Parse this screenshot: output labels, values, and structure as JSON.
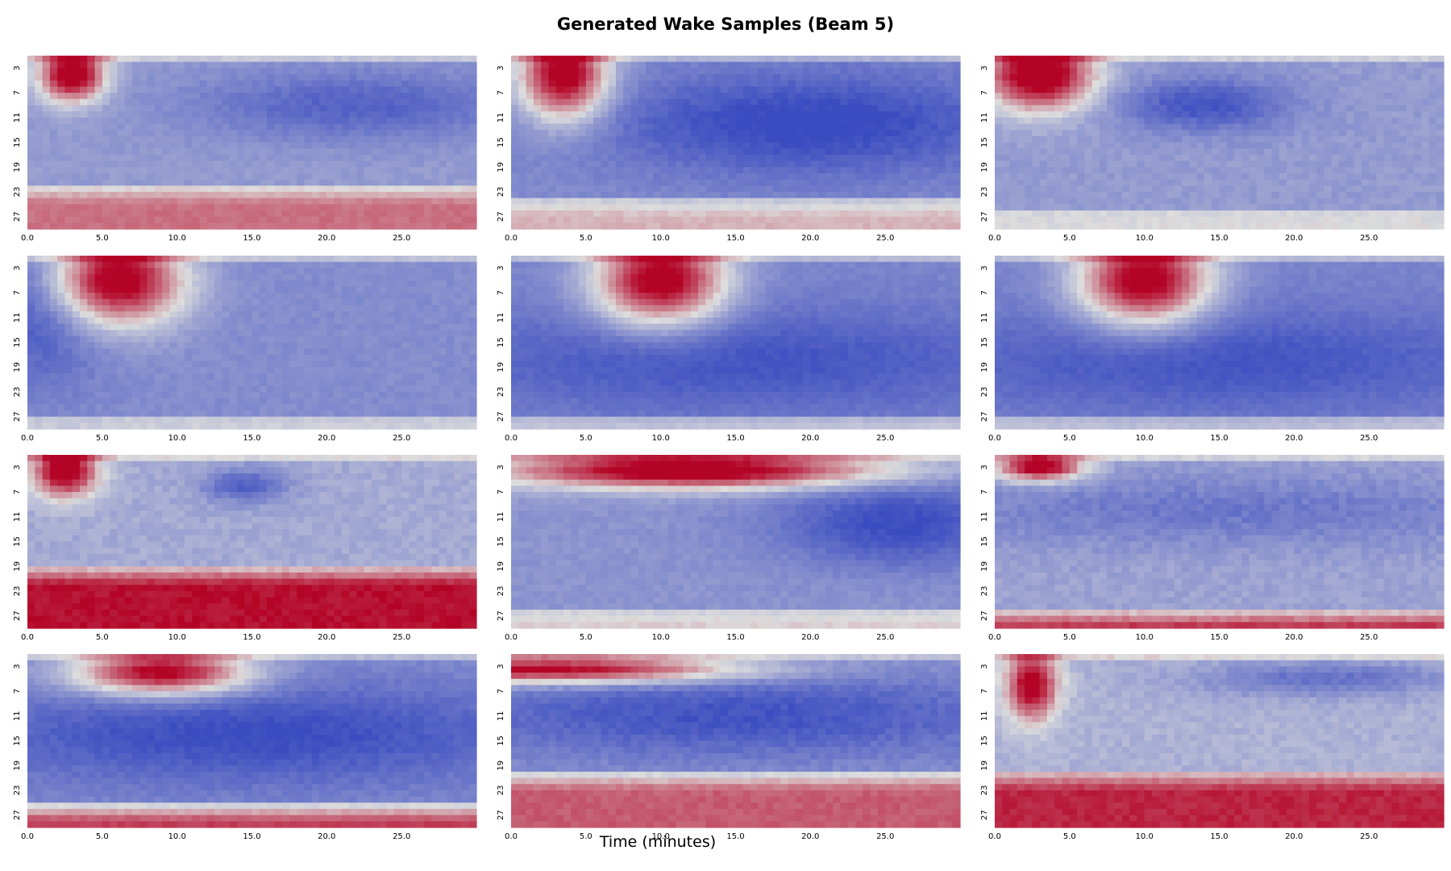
{
  "chart_data": {
    "type": "heatmap",
    "title": "Generated Wake Samples (Beam 5)",
    "xlabel": "Time (minutes)",
    "ylabel": "",
    "colormap": "coolwarm",
    "colors": {
      "low": "#3b4cc0",
      "mid": "#dddddd",
      "high": "#b40426"
    },
    "grid": false,
    "x_tick_labels": [
      "0.0",
      "5.0",
      "10.0",
      "15.0",
      "20.0",
      "25.0"
    ],
    "y_tick_labels": [
      "3",
      "7",
      "11",
      "15",
      "19",
      "23",
      "27"
    ],
    "x_range": [
      0,
      30
    ],
    "depth_range": [
      1,
      29
    ],
    "layout": {
      "rows": 4,
      "cols": 3
    },
    "panels": [
      {
        "hot": {
          "t": 3,
          "d": 4,
          "dt": 1.5,
          "dd": 3,
          "amp": 1.0
        },
        "trough": {
          "t": 22,
          "d": 9,
          "dt": 8,
          "dd": 4,
          "amp": 0.4
        },
        "bottom": {
          "from": 22,
          "amp": 0.55
        },
        "base": -0.45,
        "noise": 0.05
      },
      {
        "hot": {
          "t": 3.5,
          "d": 4,
          "dt": 2,
          "dd": 5,
          "amp": 1.0
        },
        "trough": {
          "t": 20,
          "d": 12,
          "dt": 10,
          "dd": 6,
          "amp": 0.5
        },
        "bottom": {
          "from": 24,
          "amp": 0.35
        },
        "base": -0.55,
        "noise": 0.05
      },
      {
        "hot": {
          "t": 3,
          "d": 4,
          "dt": 2.5,
          "dd": 4,
          "amp": 1.0
        },
        "trough": {
          "t": 14,
          "d": 9,
          "dt": 4,
          "dd": 3,
          "amp": 0.5
        },
        "bottom": {
          "from": 26,
          "amp": 0.05
        },
        "base": -0.45,
        "noise": 0.06
      },
      {
        "hot": {
          "t": 6,
          "d": 5,
          "dt": 3,
          "dd": 5,
          "amp": 1.0
        },
        "trough": {
          "t": 1,
          "d": 10,
          "dt": 3,
          "dd": 8,
          "amp": 0.4
        },
        "bottom": {
          "from": 27,
          "amp": 0.1
        },
        "base": -0.55,
        "noise": 0.05
      },
      {
        "hot": {
          "t": 10,
          "d": 5,
          "dt": 3,
          "dd": 5,
          "amp": 1.0
        },
        "trough": {
          "t": 15,
          "d": 18,
          "dt": 15,
          "dd": 6,
          "amp": 0.35
        },
        "bottom": {
          "from": 27,
          "amp": 0.15
        },
        "base": -0.6,
        "noise": 0.04
      },
      {
        "hot": {
          "t": 10,
          "d": 5,
          "dt": 3,
          "dd": 5,
          "amp": 1.0
        },
        "trough": {
          "t": 15,
          "d": 18,
          "dt": 15,
          "dd": 6,
          "amp": 0.35
        },
        "bottom": {
          "from": 27,
          "amp": 0.1
        },
        "base": -0.6,
        "noise": 0.04
      },
      {
        "hot": {
          "t": 2.5,
          "d": 3.5,
          "dt": 1.5,
          "dd": 3,
          "amp": 0.9
        },
        "trough": {
          "t": 14.5,
          "d": 6,
          "dt": 2,
          "dd": 2,
          "amp": 0.5
        },
        "bottom": {
          "from": 19,
          "amp": 0.9
        },
        "base": -0.35,
        "noise": 0.07
      },
      {
        "hot": {
          "t": 12,
          "d": 3.5,
          "dt": 9,
          "dd": 2,
          "amp": 1.0
        },
        "trough": {
          "t": 26,
          "d": 12,
          "dt": 6,
          "dd": 5,
          "amp": 0.5
        },
        "bottom": {
          "from": 26,
          "amp": 0.2
        },
        "base": -0.5,
        "noise": 0.05
      },
      {
        "hot": {
          "t": 3,
          "d": 3,
          "dt": 2,
          "dd": 1.5,
          "amp": 0.9
        },
        "trough": {
          "t": 15,
          "d": 10,
          "dt": 15,
          "dd": 4,
          "amp": 0.3
        },
        "bottom": {
          "from": 26,
          "amp": 0.9
        },
        "base": -0.4,
        "noise": 0.07
      },
      {
        "hot": {
          "t": 9,
          "d": 4,
          "dt": 4,
          "dd": 2.5,
          "amp": 0.95
        },
        "trough": {
          "t": 15,
          "d": 14,
          "dt": 15,
          "dd": 6,
          "amp": 0.45
        },
        "bottom": {
          "from": 25,
          "amp": 0.9
        },
        "base": -0.55,
        "noise": 0.05
      },
      {
        "hot": {
          "t": 2.5,
          "d": 3.5,
          "dt": 9,
          "dd": 1.5,
          "amp": 0.9
        },
        "trough": {
          "t": 15,
          "d": 11,
          "dt": 15,
          "dd": 5,
          "amp": 0.45
        },
        "bottom": {
          "from": 20,
          "amp": 0.7
        },
        "base": -0.5,
        "noise": 0.06
      },
      {
        "hot": {
          "t": 2.5,
          "d": 6,
          "dt": 1.2,
          "dd": 4,
          "amp": 0.8
        },
        "trough": {
          "t": 22,
          "d": 5,
          "dt": 6,
          "dd": 2,
          "amp": 0.45
        },
        "bottom": {
          "from": 20,
          "amp": 0.75
        },
        "base": -0.3,
        "noise": 0.07
      }
    ]
  }
}
